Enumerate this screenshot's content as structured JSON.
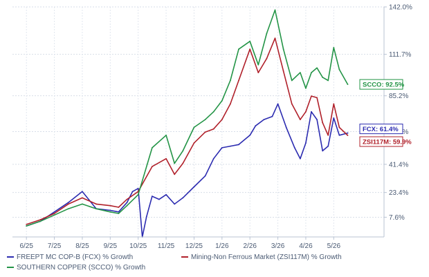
{
  "chart_data": {
    "type": "line",
    "title": "",
    "xlabel": "",
    "ylabel": "",
    "x_ticks": [
      "6/25",
      "7/25",
      "8/25",
      "9/25",
      "10/25",
      "11/25",
      "12/25",
      "1/26",
      "2/26",
      "3/26",
      "4/26",
      "5/26"
    ],
    "y_ticks": [
      "7.6%",
      "23.4%",
      "41.4%",
      "62.3%",
      "85.2%",
      "111.7%",
      "142.0%"
    ],
    "ylim": [
      -5,
      142
    ],
    "grid": true,
    "legend_position": "bottom",
    "series": [
      {
        "name": "FREEPT MC COP-B (FCX) % Growth",
        "color": "#2b2bb0",
        "end_label": "FCX: 61.4%",
        "x": [
          0,
          0.5,
          1,
          1.5,
          2,
          2.5,
          3,
          3.3,
          3.6,
          3.8,
          4,
          4.15,
          4.3,
          4.5,
          4.75,
          5,
          5.3,
          5.6,
          6,
          6.4,
          6.7,
          7,
          7.3,
          7.6,
          8,
          8.2,
          8.5,
          8.8,
          9,
          9.3,
          9.6,
          9.8,
          10,
          10.2,
          10.4,
          10.6,
          10.8,
          11,
          11.2,
          11.5
        ],
        "values": [
          2,
          5,
          11,
          17,
          24,
          13,
          12,
          11,
          17,
          24,
          26,
          -5,
          8,
          21,
          19,
          22,
          16,
          20,
          27,
          34,
          45,
          52,
          53,
          54,
          60,
          66,
          70,
          72,
          80,
          65,
          52,
          45,
          55,
          75,
          70,
          50,
          53,
          71,
          60,
          61.4
        ]
      },
      {
        "name": "Mining-Non Ferrous Market (ZSI117M) % Growth",
        "color": "#b0202a",
        "end_label": "ZSI117M: 59.9%",
        "x": [
          0,
          0.5,
          1,
          1.5,
          2,
          2.5,
          3,
          3.3,
          3.6,
          4,
          4.5,
          5,
          5.3,
          5.6,
          6,
          6.4,
          6.7,
          7,
          7.3,
          7.6,
          8,
          8.3,
          8.6,
          8.9,
          9.2,
          9.5,
          9.8,
          10,
          10.2,
          10.4,
          10.6,
          10.8,
          11,
          11.2,
          11.5
        ],
        "values": [
          3,
          6,
          10,
          16,
          20,
          16,
          15,
          14,
          19,
          24,
          40,
          45,
          35,
          42,
          55,
          62,
          64,
          70,
          80,
          95,
          115,
          100,
          109,
          122,
          101,
          80,
          70,
          75,
          85,
          84,
          68,
          60,
          80,
          65,
          59.9
        ]
      },
      {
        "name": "SOUTHERN COPPER (SCCO) % Growth",
        "color": "#239446",
        "end_label": "SCCO: 92.5%",
        "x": [
          0,
          0.5,
          1,
          1.5,
          2,
          2.5,
          3,
          3.3,
          3.6,
          4,
          4.5,
          5,
          5.3,
          5.6,
          6,
          6.4,
          6.7,
          7,
          7.3,
          7.6,
          8,
          8.3,
          8.6,
          8.9,
          9.2,
          9.5,
          9.8,
          10,
          10.2,
          10.4,
          10.6,
          10.8,
          11,
          11.2,
          11.5
        ],
        "values": [
          2,
          5,
          9,
          13,
          16,
          13,
          11,
          10,
          15,
          22,
          52,
          60,
          42,
          50,
          65,
          70,
          75,
          82,
          95,
          115,
          120,
          105,
          125,
          140,
          115,
          95,
          100,
          90,
          100,
          103,
          97,
          95,
          116,
          102,
          92.5
        ]
      }
    ]
  }
}
